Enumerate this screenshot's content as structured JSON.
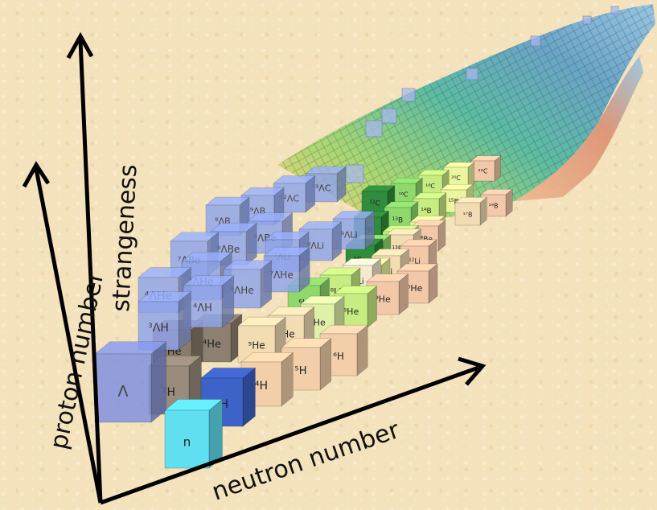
{
  "axes": {
    "proton": "proton number",
    "strangeness": "strangeness",
    "neutron": "neutron number"
  },
  "nuclei": {
    "base": [
      {
        "label": "n",
        "color": "#5fdff0"
      },
      {
        "label": "²H",
        "color": "#9a8c7c"
      },
      {
        "label": "³H",
        "color": "#3d63c9"
      },
      {
        "label": "⁴H",
        "color": "#f2cfa9"
      },
      {
        "label": "⁵H",
        "color": "#f2cfa9"
      },
      {
        "label": "⁶H",
        "color": "#f2cfa9"
      },
      {
        "label": "³He",
        "color": "#8a7a6a"
      },
      {
        "label": "⁴He",
        "color": "#8d8070"
      },
      {
        "label": "⁵He",
        "color": "#f2dcb2"
      },
      {
        "label": "⁶He",
        "color": "#f2dcb2"
      },
      {
        "label": "⁷He",
        "color": "#dff0a9"
      },
      {
        "label": "⁸He",
        "color": "#c7ec82"
      },
      {
        "label": "⁹He",
        "color": "#f2c8a8"
      },
      {
        "label": "¹⁰He",
        "color": "#f2c8a8"
      },
      {
        "label": "⁶Li",
        "color": "#8fd86c"
      },
      {
        "label": "⁸Li",
        "color": "#c7ec82"
      },
      {
        "label": "⁹Li",
        "color": "#ebf59e"
      },
      {
        "label": "¹⁰Li",
        "color": "#f3ead0"
      },
      {
        "label": "¹¹Li",
        "color": "#f2dcb2"
      },
      {
        "label": "¹²Li",
        "color": "#f2c8a8"
      },
      {
        "label": "⁹Be",
        "color": "#2f8d3b"
      },
      {
        "label": "¹⁰Be",
        "color": "#8fd86c"
      },
      {
        "label": "¹¹Be",
        "color": "#c7ec82"
      },
      {
        "label": "¹²Be",
        "color": "#ebf59e"
      },
      {
        "label": "¹³Be",
        "color": "#f2dcb2"
      },
      {
        "label": "¹⁴Be",
        "color": "#f2c8a8"
      },
      {
        "label": "¹¹B",
        "color": "#2f8d3b"
      },
      {
        "label": "¹³B",
        "color": "#8fd86c"
      },
      {
        "label": "¹⁴B",
        "color": "#c7ec82"
      },
      {
        "label": "¹⁵B",
        "color": "#ebf59e"
      },
      {
        "label": "¹⁷B",
        "color": "#f2dcb2"
      },
      {
        "label": "¹⁹B",
        "color": "#f2c8a8"
      },
      {
        "label": "¹²C",
        "color": "#2f8d3b"
      },
      {
        "label": "¹⁶C",
        "color": "#8fd86c"
      },
      {
        "label": "¹⁸C",
        "color": "#c7ec82"
      },
      {
        "label": "²⁰C",
        "color": "#ebf59e"
      },
      {
        "label": "²²C",
        "color": "#f2c8a8"
      }
    ],
    "hyper": [
      {
        "label": "Λ",
        "color": "#7d8fe0"
      },
      {
        "label": "³ΛH",
        "color": "#8fa4ea"
      },
      {
        "label": "⁴ΛH",
        "color": "#8fa4ea"
      },
      {
        "label": "⁴ΛHe",
        "color": "#8fa4ea"
      },
      {
        "label": "⁵ΛHe",
        "color": "#8fa4ea"
      },
      {
        "label": "⁶ΛHe",
        "color": "#8fa4ea"
      },
      {
        "label": "⁷ΛHe",
        "color": "#8fa4ea"
      },
      {
        "label": "⁷ΛBe",
        "color": "#8fa4ea"
      },
      {
        "label": "⁸ΛBe",
        "color": "#8fa4ea"
      },
      {
        "label": "⁹ΛBe",
        "color": "#8fa4ea"
      },
      {
        "label": "⁸ΛB",
        "color": "#8fa4ea"
      },
      {
        "label": "⁹ΛB",
        "color": "#8fa4ea"
      },
      {
        "label": "⁷ΛLi",
        "color": "#8fa4ea"
      },
      {
        "label": "⁸ΛLi",
        "color": "#8fa4ea"
      },
      {
        "label": "⁹ΛLi",
        "color": "#8fa4ea"
      },
      {
        "label": "¹²ΛC",
        "color": "#8fa4ea"
      },
      {
        "label": "¹³ΛC",
        "color": "#8fa4ea"
      }
    ]
  },
  "colors": {
    "background": "#f3e2bb",
    "axis": "#000000",
    "hypernucleus": "#8fa4ea",
    "far_band_start": "#4fb8a0",
    "far_band_end": "#7fbfe0"
  }
}
